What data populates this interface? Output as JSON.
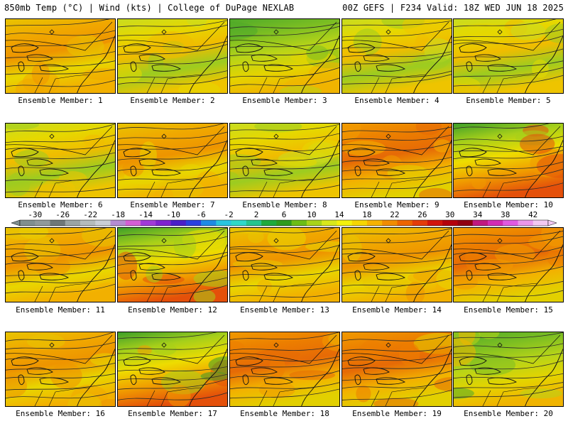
{
  "header": {
    "left": "850mb Temp (°C) | Wind (kts) | College of DuPage NEXLAB",
    "right": "00Z GEFS | F234 Valid: 18Z WED JUN 18 2025"
  },
  "member_label_prefix": "Ensemble Member:",
  "members": [
    {
      "number": 1,
      "label": "Ensemble Member: 1",
      "tone": "warm"
    },
    {
      "number": 2,
      "label": "Ensemble Member: 2",
      "tone": "mild"
    },
    {
      "number": 3,
      "label": "Ensemble Member: 3",
      "tone": "cool"
    },
    {
      "number": 4,
      "label": "Ensemble Member: 4",
      "tone": "mild"
    },
    {
      "number": 5,
      "label": "Ensemble Member: 5",
      "tone": "mild"
    },
    {
      "number": 6,
      "label": "Ensemble Member: 6",
      "tone": "mild"
    },
    {
      "number": 7,
      "label": "Ensemble Member: 7",
      "tone": "warm"
    },
    {
      "number": 8,
      "label": "Ensemble Member: 8",
      "tone": "mild"
    },
    {
      "number": 9,
      "label": "Ensemble Member: 9",
      "tone": "hot"
    },
    {
      "number": 10,
      "label": "Ensemble Member: 10",
      "tone": "cool-north-hot-south"
    },
    {
      "number": 11,
      "label": "Ensemble Member: 11",
      "tone": "warm"
    },
    {
      "number": 12,
      "label": "Ensemble Member: 12",
      "tone": "cool-north-hot-south"
    },
    {
      "number": 13,
      "label": "Ensemble Member: 13",
      "tone": "warm"
    },
    {
      "number": 14,
      "label": "Ensemble Member: 14",
      "tone": "warm"
    },
    {
      "number": 15,
      "label": "Ensemble Member: 15",
      "tone": "hot"
    },
    {
      "number": 16,
      "label": "Ensemble Member: 16",
      "tone": "warm"
    },
    {
      "number": 17,
      "label": "Ensemble Member: 17",
      "tone": "cool-north-hot-south"
    },
    {
      "number": 18,
      "label": "Ensemble Member: 18",
      "tone": "hot"
    },
    {
      "number": 19,
      "label": "Ensemble Member: 19",
      "tone": "hot"
    },
    {
      "number": 20,
      "label": "Ensemble Member: 20",
      "tone": "cool"
    }
  ],
  "colorbar": {
    "unit": "°C",
    "tick_labels": [
      "-30",
      "-26",
      "-22",
      "-18",
      "-14",
      "-10",
      "-6",
      "-2",
      "2",
      "6",
      "10",
      "14",
      "18",
      "22",
      "26",
      "30",
      "34",
      "38",
      "42"
    ],
    "colors": [
      "#7f8f8f",
      "#8f9a9a",
      "#6e7878",
      "#9aa5a5",
      "#b4bcbc",
      "#c9cfd6",
      "#b48cd2",
      "#d55fd5",
      "#a13ad8",
      "#7f22cf",
      "#4a1ec8",
      "#2a40e0",
      "#1e8ae6",
      "#29c4e0",
      "#2fd8c8",
      "#26c48e",
      "#1eaa3c",
      "#2e9b1e",
      "#6cbd16",
      "#a8d41a",
      "#d8e81c",
      "#f4f20c",
      "#f6d600",
      "#f6b200",
      "#f18c00",
      "#ec6400",
      "#e43c0a",
      "#d2140c",
      "#b4000c",
      "#900012",
      "#c01880",
      "#d22cb4",
      "#e05ae0",
      "#ea96ea",
      "#f2c8f2"
    ]
  }
}
